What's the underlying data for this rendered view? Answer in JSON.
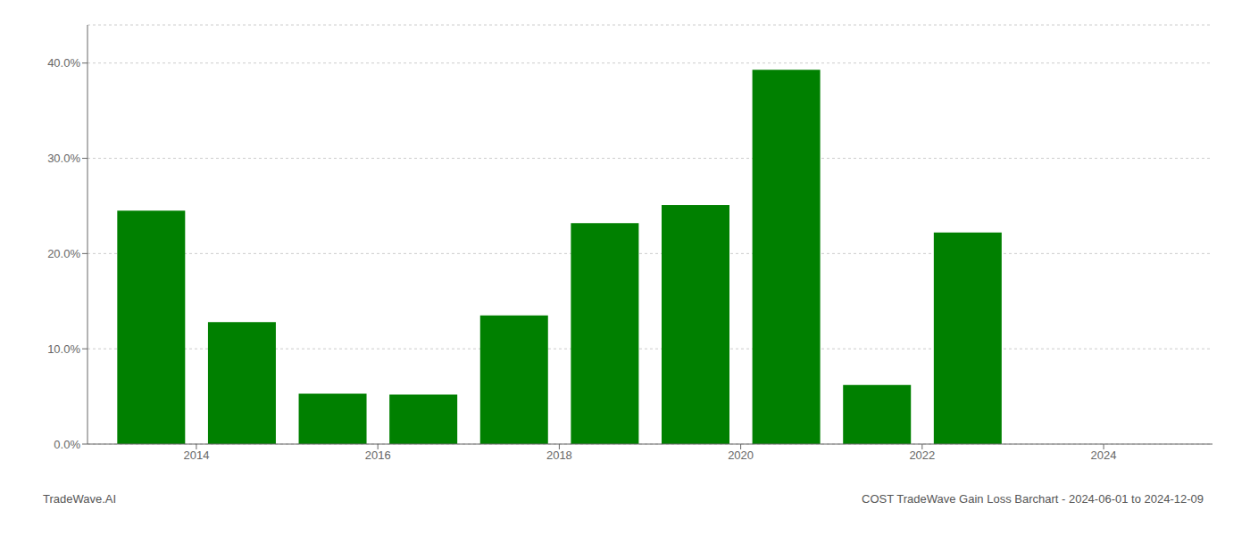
{
  "chart_data": {
    "type": "bar",
    "title": "COST TradeWave Gain Loss Barchart - 2024-06-01 to 2024-12-09",
    "annotations": [
      "TradeWave.AI"
    ],
    "x": [
      2013.5,
      2014.5,
      2015.5,
      2016.5,
      2017.5,
      2018.5,
      2019.5,
      2020.5,
      2021.5,
      2022.5,
      2023.5
    ],
    "values": [
      0.245,
      0.128,
      0.053,
      0.052,
      0.135,
      0.232,
      0.251,
      0.393,
      0.062,
      0.222,
      0.0
    ],
    "color": "#008000",
    "xlim": [
      2012.8,
      2025.2
    ],
    "xticks": [
      2014,
      2016,
      2018,
      2020,
      2022,
      2024
    ],
    "ylim": [
      0,
      0.44
    ],
    "yticks": [
      {
        "value": 0.0,
        "label": "0.0%"
      },
      {
        "value": 0.1,
        "label": "10.0%"
      },
      {
        "value": 0.2,
        "label": "20.0%"
      },
      {
        "value": 0.3,
        "label": "30.0%"
      },
      {
        "value": 0.4,
        "label": "40.0%"
      }
    ],
    "grid": true
  }
}
